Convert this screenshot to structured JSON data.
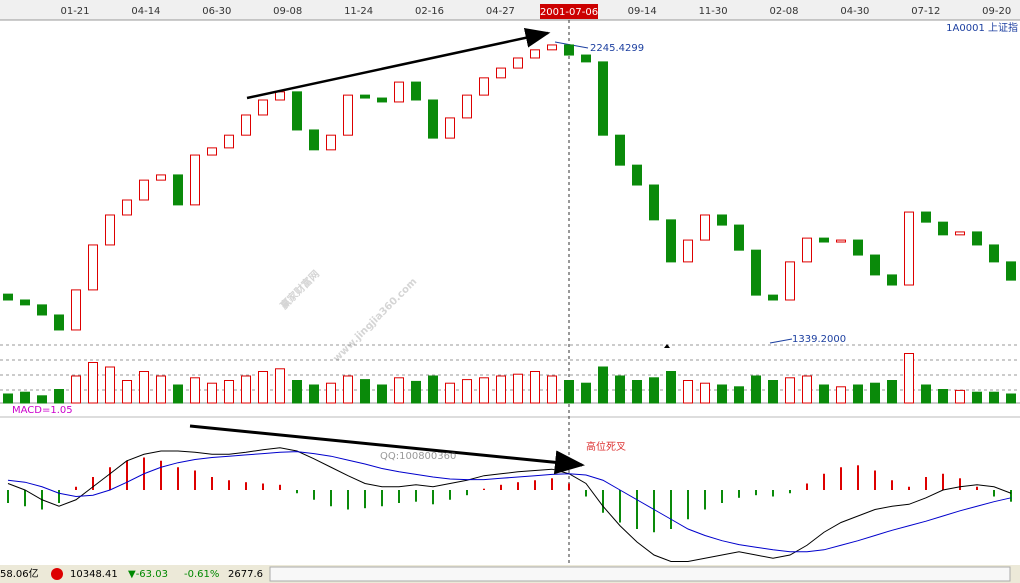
{
  "chart_data": {
    "type": "candlestick",
    "time_axis": [
      "01-21",
      "04-14",
      "06-30",
      "09-08",
      "11-24",
      "02-16",
      "04-27",
      "09-14",
      "11-30",
      "02-08",
      "04-30",
      "07-12",
      "09-20"
    ],
    "cursor_date": "2001-07-06",
    "symbol": "1A0001 上证指",
    "high_label": "2245.4299",
    "low_label": "1339.2000",
    "open": [
      1480,
      1462,
      1447,
      1416,
      1370,
      1493,
      1631,
      1723,
      1769,
      1830,
      1846,
      1754,
      1907,
      1929,
      1968,
      2030,
      2076,
      2101,
      1984,
      1923,
      1968,
      2091,
      2082,
      2070,
      2131,
      2076,
      1959,
      2021,
      2091,
      2144,
      2174,
      2205,
      2230,
      2245,
      2214,
      2193,
      1968,
      1876,
      1815,
      1708,
      1579,
      1646,
      1723,
      1692,
      1615,
      1477,
      1462,
      1579,
      1652,
      1640,
      1646,
      1600,
      1539,
      1508,
      1732,
      1701,
      1662,
      1671,
      1631,
      1579
    ],
    "close": [
      1462,
      1447,
      1416,
      1370,
      1493,
      1631,
      1723,
      1769,
      1830,
      1846,
      1754,
      1907,
      1929,
      1968,
      2030,
      2076,
      2101,
      1984,
      1923,
      1968,
      2091,
      2082,
      2070,
      2131,
      2076,
      1959,
      2021,
      2091,
      2144,
      2174,
      2205,
      2230,
      2245,
      2214,
      2193,
      1968,
      1876,
      1815,
      1708,
      1579,
      1646,
      1723,
      1692,
      1615,
      1477,
      1462,
      1579,
      1652,
      1640,
      1646,
      1600,
      1539,
      1508,
      1732,
      1701,
      1662,
      1671,
      1631,
      1579,
      1523
    ],
    "volume": [
      10,
      12,
      8,
      15,
      30,
      45,
      40,
      25,
      35,
      30,
      20,
      28,
      22,
      25,
      30,
      35,
      38,
      25,
      20,
      22,
      30,
      26,
      20,
      28,
      24,
      30,
      22,
      26,
      28,
      30,
      32,
      35,
      30,
      25,
      22,
      40,
      30,
      25,
      28,
      35,
      25,
      22,
      20,
      18,
      30,
      25,
      28,
      30,
      20,
      18,
      20,
      22,
      25,
      55,
      20,
      15,
      14,
      12,
      12,
      10
    ],
    "macd_label": "MACD=1.05",
    "macd": [
      -20,
      -25,
      -30,
      -20,
      5,
      20,
      35,
      45,
      50,
      45,
      35,
      30,
      20,
      15,
      12,
      10,
      8,
      -5,
      -15,
      -25,
      -30,
      -28,
      -25,
      -20,
      -18,
      -22,
      -15,
      -8,
      2,
      8,
      12,
      15,
      18,
      10,
      -10,
      -35,
      -50,
      -60,
      -65,
      -60,
      -45,
      -30,
      -20,
      -12,
      -8,
      -10,
      -5,
      10,
      25,
      35,
      38,
      30,
      15,
      5,
      20,
      25,
      18,
      5,
      -10,
      -18
    ],
    "dif": [
      10,
      0,
      -15,
      -25,
      -15,
      5,
      25,
      45,
      55,
      60,
      60,
      58,
      55,
      55,
      58,
      62,
      65,
      60,
      48,
      35,
      22,
      10,
      5,
      5,
      8,
      5,
      10,
      15,
      22,
      25,
      28,
      30,
      32,
      25,
      10,
      -25,
      -55,
      -80,
      -100,
      -110,
      -110,
      -105,
      -100,
      -95,
      -100,
      -105,
      -100,
      -85,
      -65,
      -50,
      -40,
      -30,
      -25,
      -22,
      -12,
      0,
      5,
      8,
      5,
      -5
    ],
    "dea": [
      15,
      12,
      5,
      -5,
      -10,
      -8,
      0,
      12,
      25,
      35,
      42,
      47,
      50,
      52,
      54,
      56,
      58,
      59,
      56,
      52,
      46,
      40,
      33,
      28,
      24,
      20,
      17,
      16,
      16,
      18,
      20,
      22,
      24,
      25,
      23,
      15,
      0,
      -15,
      -30,
      -45,
      -60,
      -70,
      -78,
      -84,
      -88,
      -92,
      -95,
      -95,
      -92,
      -85,
      -78,
      -70,
      -62,
      -55,
      -48,
      -40,
      -32,
      -25,
      -18,
      -12
    ],
    "annotation": "高位死叉",
    "watermark": [
      "赢家财富网",
      "www.jingjia360.com",
      "QQ:100800360"
    ],
    "status": {
      "amount": "58.06亿",
      "index": "10348.41",
      "change": "▼-63.03",
      "pct": "-0.61%",
      "other": "2677.6"
    }
  }
}
